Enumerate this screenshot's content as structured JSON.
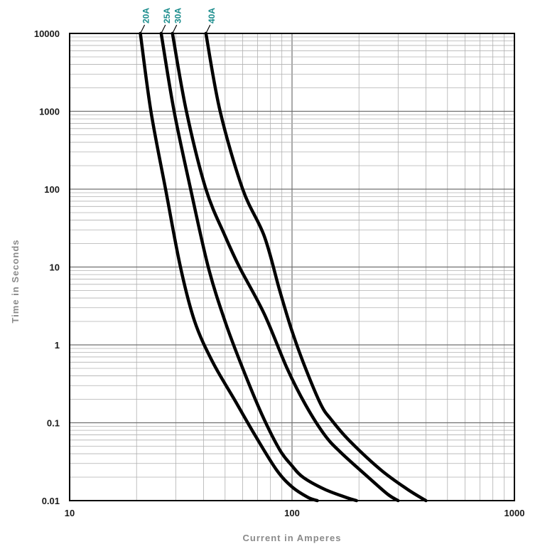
{
  "chart_data": {
    "type": "line",
    "xlabel": "Current in Amperes",
    "ylabel": "Time in Seconds",
    "x_scale": "log",
    "y_scale": "log",
    "xlim": [
      10,
      1000
    ],
    "ylim": [
      0.01,
      10000
    ],
    "x_tick_labels": [
      "10",
      "100",
      "1000"
    ],
    "x_tick_values": [
      10,
      100,
      1000
    ],
    "y_tick_labels": [
      "10000",
      "1000",
      "100",
      "10",
      "1",
      "0.1",
      "0.01"
    ],
    "y_tick_values": [
      10000,
      1000,
      100,
      10,
      1,
      0.1,
      0.01
    ],
    "grid": true,
    "colors": {
      "series": "#000000",
      "label": "#1a8c8c",
      "axis_title": "#8a8a8a",
      "grid": "#b0b0b0"
    },
    "series": [
      {
        "name": "20A",
        "points": [
          [
            20.8,
            10000
          ],
          [
            23.2,
            1000
          ],
          [
            27.0,
            100
          ],
          [
            31.5,
            10
          ],
          [
            36.5,
            2
          ],
          [
            44,
            0.6
          ],
          [
            55,
            0.2
          ],
          [
            68,
            0.07
          ],
          [
            85,
            0.025
          ],
          [
            100,
            0.015
          ],
          [
            118,
            0.011
          ],
          [
            130,
            0.01
          ]
        ]
      },
      {
        "name": "25A",
        "points": [
          [
            25.8,
            10000
          ],
          [
            29.5,
            1000
          ],
          [
            35.0,
            100
          ],
          [
            42.0,
            10
          ],
          [
            50,
            2
          ],
          [
            60,
            0.5
          ],
          [
            73,
            0.13
          ],
          [
            88,
            0.045
          ],
          [
            100,
            0.028
          ],
          [
            112,
            0.02
          ],
          [
            140,
            0.014
          ],
          [
            175,
            0.011
          ],
          [
            195,
            0.01
          ]
        ]
      },
      {
        "name": "30A",
        "points": [
          [
            29.0,
            10000
          ],
          [
            33.5,
            1000
          ],
          [
            41.0,
            100
          ],
          [
            50.0,
            25
          ],
          [
            58,
            10
          ],
          [
            75,
            2.5
          ],
          [
            95,
            0.5
          ],
          [
            115,
            0.17
          ],
          [
            140,
            0.07
          ],
          [
            165,
            0.042
          ],
          [
            220,
            0.02
          ],
          [
            270,
            0.012
          ],
          [
            300,
            0.01
          ]
        ]
      },
      {
        "name": "40A",
        "points": [
          [
            41.0,
            10000
          ],
          [
            47.5,
            1000
          ],
          [
            60.0,
            100
          ],
          [
            75,
            25
          ],
          [
            88,
            5
          ],
          [
            100,
            1.5
          ],
          [
            115,
            0.5
          ],
          [
            135,
            0.17
          ],
          [
            150,
            0.11
          ],
          [
            180,
            0.06
          ],
          [
            250,
            0.025
          ],
          [
            330,
            0.014
          ],
          [
            400,
            0.01
          ]
        ]
      }
    ]
  }
}
